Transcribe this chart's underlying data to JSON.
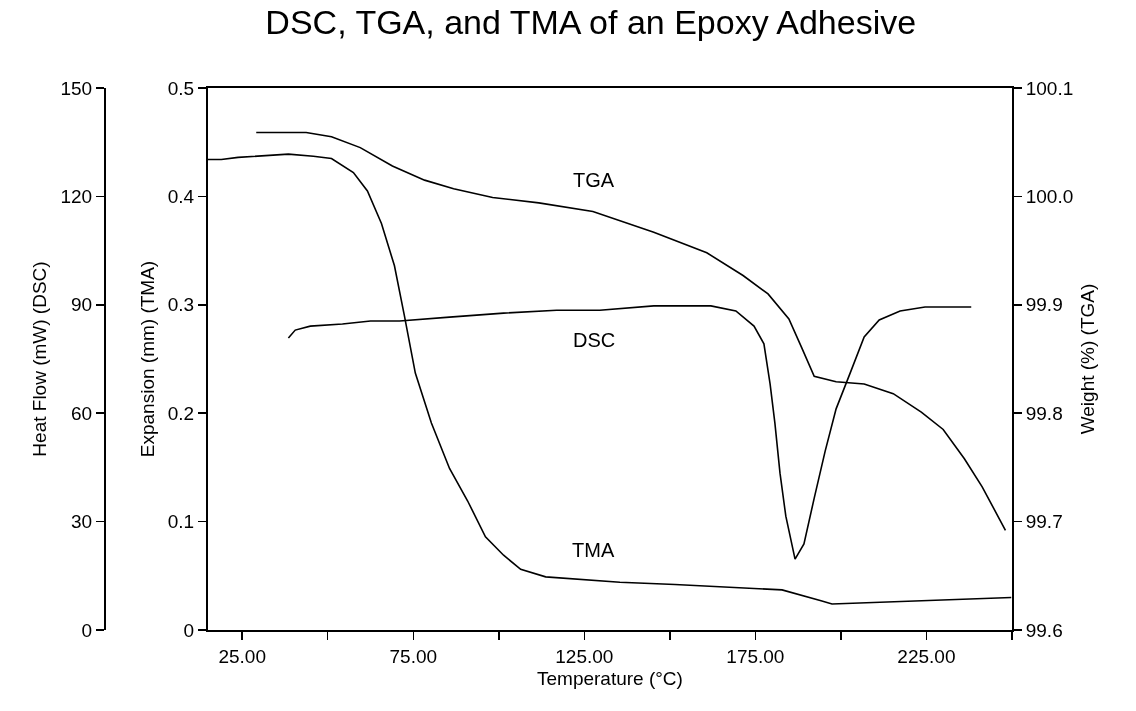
{
  "chart_data": {
    "type": "line",
    "title": "DSC, TGA, and TMA of an Epoxy Adhesive",
    "xlabel": "Temperature (°C)",
    "ylabel": "Expansion (mm) (TMA)",
    "y2label": "Weight (%) (TGA)",
    "y3label": "Heat Flow (mW) (DSC)",
    "xlim": [
      15,
      250
    ],
    "xticks": [
      {
        "value": 25,
        "label": "25.00"
      },
      {
        "value": 50,
        "label": null
      },
      {
        "value": 75,
        "label": "75.00"
      },
      {
        "value": 100,
        "label": null
      },
      {
        "value": 125,
        "label": "125.00"
      },
      {
        "value": 150,
        "label": null
      },
      {
        "value": 175,
        "label": "175.00"
      },
      {
        "value": 200,
        "label": null
      },
      {
        "value": 225,
        "label": "225.00"
      },
      {
        "value": 250,
        "label": null
      }
    ],
    "ylim": [
      0,
      0.5
    ],
    "yticks": [
      0,
      0.1,
      0.2,
      0.3,
      0.4,
      0.5
    ],
    "y2lim": [
      99.6,
      100.1
    ],
    "y2ticks": [
      99.6,
      99.7,
      99.8,
      99.9,
      {
        "value": 100,
        "label": "100.0"
      },
      100.1
    ],
    "y3lim": [
      0,
      150
    ],
    "y3ticks": [
      0,
      30,
      60,
      90,
      120,
      150
    ],
    "grid": false,
    "marker": "none",
    "line_style": "solid",
    "series": [
      {
        "name": "TGA",
        "color": "#000000",
        "axis": "y2",
        "x": [
          29.1,
          43.7,
          51.1,
          59.5,
          68.9,
          78.3,
          86.8,
          98.2,
          111.7,
          127.5,
          145.3,
          160.8,
          171.4,
          178.7,
          184.8,
          188.6,
          192.2,
          198.6,
          206.8,
          215.3,
          223.5,
          229.9,
          236.1,
          241.3,
          248.1
        ],
        "values": [
          100.059,
          100.059,
          100.055,
          100.045,
          100.028,
          100.015,
          100.007,
          99.999,
          99.994,
          99.986,
          99.967,
          99.948,
          99.927,
          99.91,
          99.887,
          99.86,
          99.834,
          99.829,
          99.827,
          99.818,
          99.801,
          99.785,
          99.758,
          99.732,
          99.692
        ]
      },
      {
        "name": "DSC",
        "color": "#000000",
        "axis": "y3",
        "x": [
          38.5,
          40.5,
          44.9,
          54.3,
          62.5,
          71.0,
          85.6,
          101.4,
          116.9,
          129.5,
          145.3,
          162.0,
          169.3,
          174.6,
          177.5,
          179.3,
          180.7,
          182.2,
          183.9,
          186.6,
          189.2,
          192.2,
          195.4,
          198.6,
          202.7,
          206.8,
          211.2,
          217.3,
          224.6,
          238.1
        ],
        "values": [
          80.8,
          83.0,
          84.1,
          84.7,
          85.5,
          85.5,
          86.6,
          87.7,
          88.5,
          88.5,
          89.7,
          89.7,
          88.3,
          84.1,
          79.2,
          68.1,
          57.3,
          43.4,
          31.5,
          19.6,
          23.8,
          36.5,
          49.5,
          61.2,
          71.1,
          81.1,
          85.8,
          88.3,
          89.4,
          89.4
        ]
      },
      {
        "name": "TMA",
        "color": "#000000",
        "x": [
          15,
          18.9,
          23.8,
          38.5,
          45.8,
          51.1,
          57.5,
          61.6,
          65.7,
          69.5,
          72.4,
          75.6,
          80.3,
          85.6,
          90.9,
          96.1,
          101.4,
          106.4,
          113.7,
          135.4,
          151.5,
          182.8,
          194.2,
          197.4,
          249.8
        ],
        "values": [
          0.434,
          0.434,
          0.436,
          0.439,
          0.437,
          0.435,
          0.422,
          0.405,
          0.375,
          0.336,
          0.29,
          0.237,
          0.191,
          0.149,
          0.119,
          0.086,
          0.069,
          0.056,
          0.049,
          0.044,
          0.042,
          0.037,
          0.027,
          0.024,
          0.03
        ]
      }
    ]
  }
}
